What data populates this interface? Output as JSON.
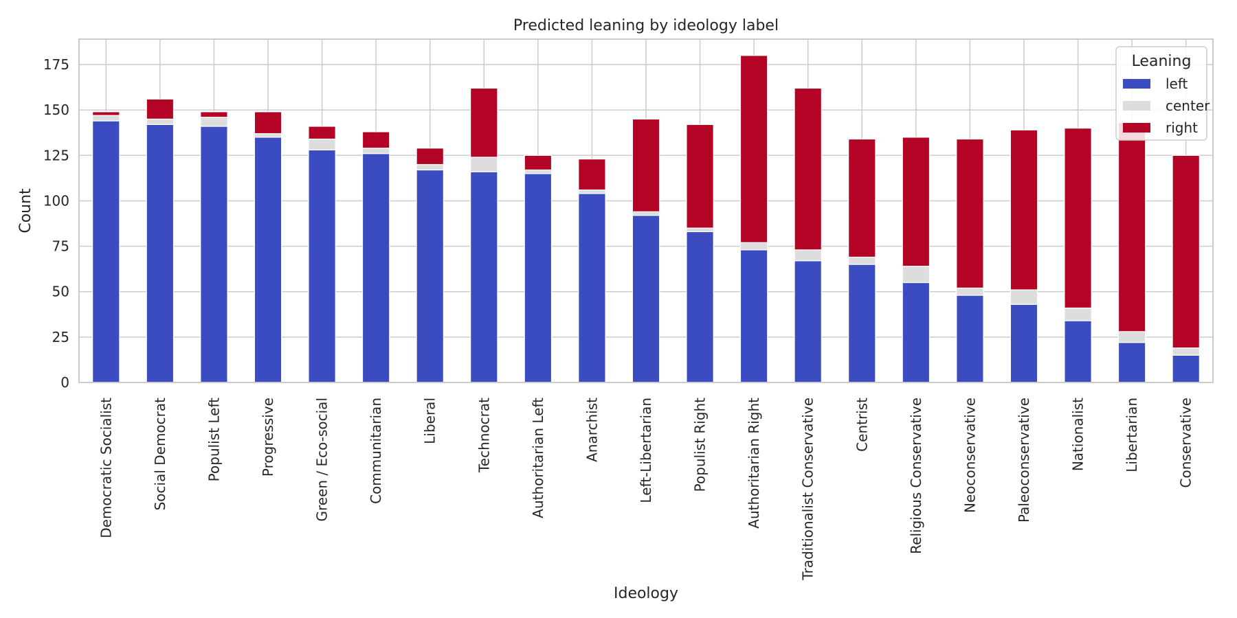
{
  "chart_data": {
    "type": "bar",
    "stacked": true,
    "title": "Predicted leaning by ideology label",
    "xlabel": "Ideology",
    "ylabel": "Count",
    "ylim": [
      0,
      189
    ],
    "yticks": [
      0,
      25,
      50,
      75,
      100,
      125,
      150,
      175
    ],
    "grid": true,
    "legend": {
      "title": "Leaning",
      "placement": "top-right"
    },
    "categories": [
      "Democratic Socialist",
      "Social Democrat",
      "Populist Left",
      "Progressive",
      "Green / Eco-social",
      "Communitarian",
      "Liberal",
      "Technocrat",
      "Authoritarian Left",
      "Anarchist",
      "Left-Libertarian",
      "Populist Right",
      "Authoritarian Right",
      "Traditionalist Conservative",
      "Centrist",
      "Religious Conservative",
      "Neoconservative",
      "Paleoconservative",
      "Nationalist",
      "Libertarian",
      "Conservative"
    ],
    "series": [
      {
        "name": "left",
        "color": "#3b4cc0",
        "values": [
          144,
          142,
          141,
          135,
          128,
          126,
          117,
          116,
          115,
          104,
          92,
          83,
          73,
          67,
          65,
          55,
          48,
          43,
          34,
          22,
          15
        ]
      },
      {
        "name": "center",
        "color": "#dddddd",
        "values": [
          3,
          3,
          5,
          2,
          6,
          3,
          3,
          8,
          2,
          2,
          2,
          2,
          4,
          6,
          4,
          9,
          4,
          8,
          7,
          6,
          4
        ]
      },
      {
        "name": "right",
        "color": "#b40426",
        "values": [
          2,
          11,
          3,
          12,
          7,
          9,
          9,
          38,
          8,
          17,
          51,
          57,
          103,
          89,
          65,
          71,
          82,
          88,
          99,
          115,
          106
        ]
      }
    ]
  }
}
